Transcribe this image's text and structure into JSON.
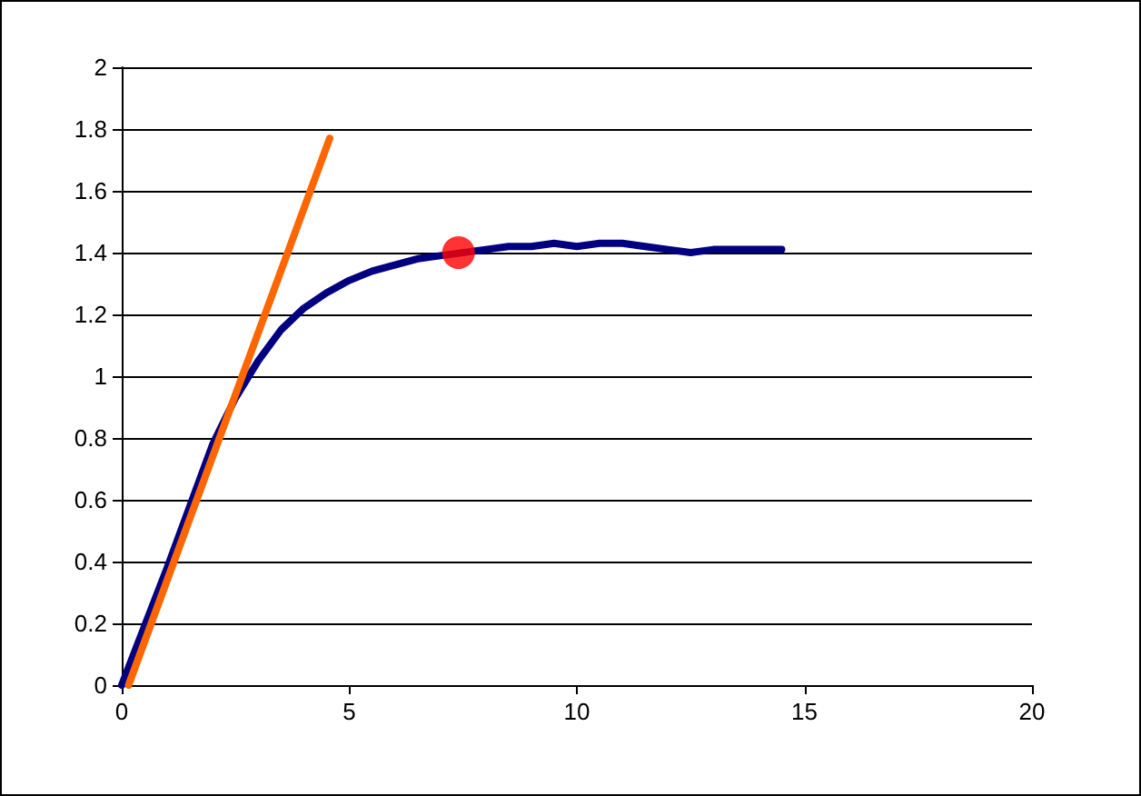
{
  "chart_data": {
    "type": "line",
    "xlim": [
      0,
      20
    ],
    "xticks": [
      0,
      5,
      10,
      15,
      20
    ],
    "ylim": [
      0,
      2
    ],
    "yticks": [
      0,
      0.2,
      0.4,
      0.6,
      0.8,
      1,
      1.2,
      1.4,
      1.6,
      1.8,
      2
    ],
    "grid": "y",
    "marker": "none",
    "line_style": "solid",
    "series": [
      {
        "color": "#000080",
        "x": [
          0,
          1,
          2,
          2.5,
          3,
          3.5,
          4,
          4.5,
          5,
          5.5,
          6,
          6.5,
          7,
          8,
          8.5,
          9,
          9.5,
          10,
          10.5,
          11,
          11.5,
          12,
          12.5,
          13,
          13.5,
          14,
          14.5
        ],
        "values": [
          0,
          0.38,
          0.78,
          0.93,
          1.05,
          1.15,
          1.22,
          1.27,
          1.31,
          1.34,
          1.36,
          1.38,
          1.39,
          1.41,
          1.42,
          1.42,
          1.43,
          1.42,
          1.43,
          1.43,
          1.42,
          1.41,
          1.4,
          1.41,
          1.41,
          1.41,
          1.41
        ]
      },
      {
        "color": "#ff6600",
        "x": [
          0.15,
          4.57
        ],
        "values": [
          0,
          1.77
        ]
      },
      {
        "type": "scatter",
        "marker": "circle",
        "color": "#ff0000",
        "x": [
          7.4
        ],
        "values": [
          1.4
        ]
      }
    ]
  }
}
